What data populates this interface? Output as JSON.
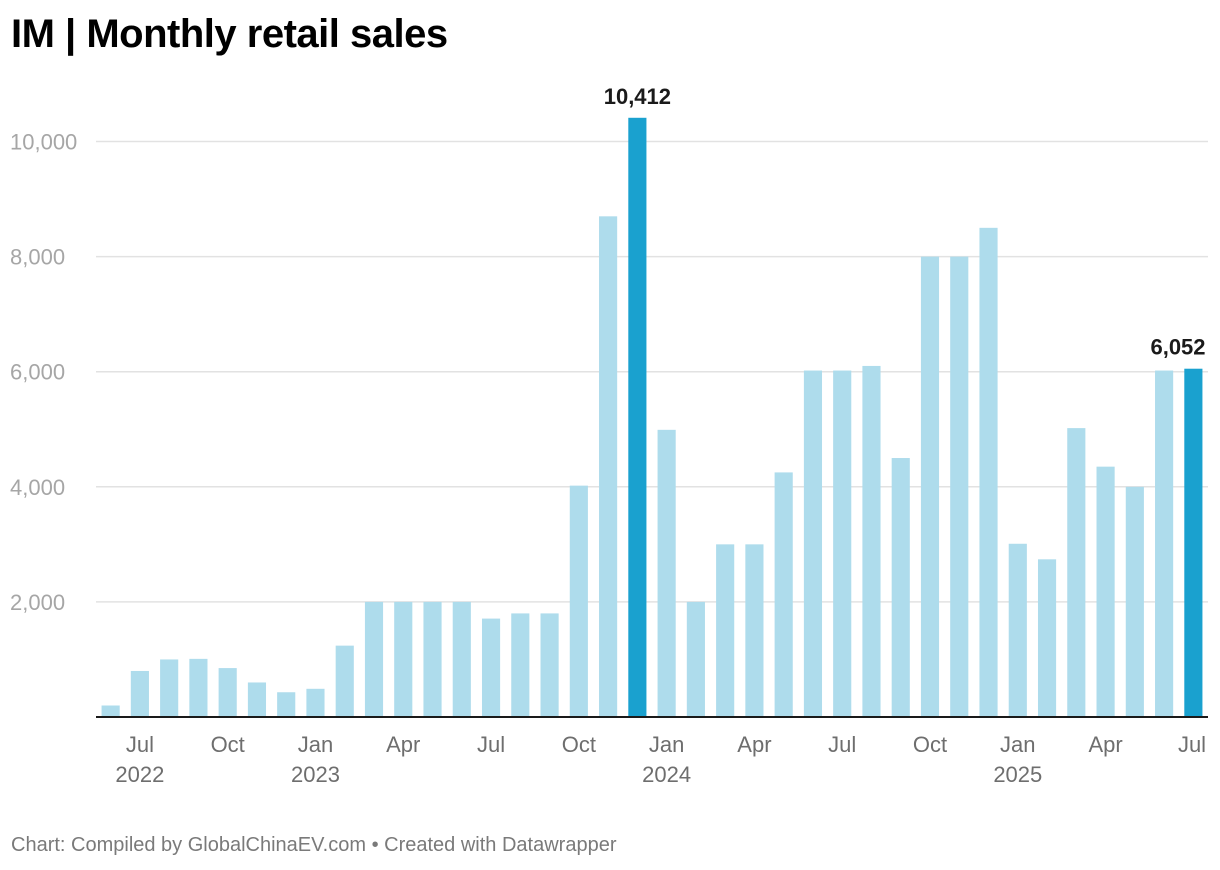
{
  "title": "IM | Monthly retail sales",
  "footer": {
    "source": "Chart: Compiled by GlobalChinaEV.com",
    "separator": "•",
    "credit": "Created with Datawrapper"
  },
  "colors": {
    "bar": "#aedcec",
    "highlight": "#1aa1cf",
    "grid": "#e2e2e2",
    "axis": "#1a1a1a"
  },
  "chart_data": {
    "type": "bar",
    "title": "IM | Monthly retail sales",
    "xlabel": "",
    "ylabel": "",
    "ylim": [
      0,
      10500
    ],
    "yticks": [
      2000,
      4000,
      6000,
      8000,
      10000
    ],
    "ytick_labels": [
      "2,000",
      "4,000",
      "6,000",
      "8,000",
      "10,000"
    ],
    "grid": true,
    "legend": "none",
    "categories": [
      "2022-06",
      "2022-07",
      "2022-08",
      "2022-09",
      "2022-10",
      "2022-11",
      "2022-12",
      "2023-01",
      "2023-02",
      "2023-03",
      "2023-04",
      "2023-05",
      "2023-06",
      "2023-07",
      "2023-08",
      "2023-09",
      "2023-10",
      "2023-11",
      "2023-12",
      "2024-01",
      "2024-02",
      "2024-03",
      "2024-04",
      "2024-05",
      "2024-06",
      "2024-07",
      "2024-08",
      "2024-09",
      "2024-10",
      "2024-11",
      "2024-12",
      "2025-01",
      "2025-02",
      "2025-03",
      "2025-04",
      "2025-05",
      "2025-06",
      "2025-07"
    ],
    "values": [
      200,
      800,
      1000,
      1010,
      850,
      600,
      430,
      490,
      1240,
      2000,
      2000,
      2000,
      2000,
      1710,
      1800,
      1800,
      4020,
      8700,
      10412,
      4990,
      2000,
      3000,
      3000,
      4250,
      6020,
      6020,
      6100,
      4500,
      8000,
      8000,
      8500,
      3010,
      2740,
      5020,
      4350,
      4000,
      6020,
      6052
    ],
    "highlight": [
      18,
      37
    ],
    "data_labels": [
      {
        "index": 18,
        "text": "10,412"
      },
      {
        "index": 37,
        "text": "6,052"
      }
    ],
    "x_tick_labels": [
      {
        "index": 1,
        "month": "Jul",
        "year": "2022"
      },
      {
        "index": 4,
        "month": "Oct",
        "year": ""
      },
      {
        "index": 7,
        "month": "Jan",
        "year": "2023"
      },
      {
        "index": 10,
        "month": "Apr",
        "year": ""
      },
      {
        "index": 13,
        "month": "Jul",
        "year": ""
      },
      {
        "index": 16,
        "month": "Oct",
        "year": ""
      },
      {
        "index": 19,
        "month": "Jan",
        "year": "2024"
      },
      {
        "index": 22,
        "month": "Apr",
        "year": ""
      },
      {
        "index": 25,
        "month": "Jul",
        "year": ""
      },
      {
        "index": 28,
        "month": "Oct",
        "year": ""
      },
      {
        "index": 31,
        "month": "Jan",
        "year": "2025"
      },
      {
        "index": 34,
        "month": "Apr",
        "year": ""
      },
      {
        "index": 37,
        "month": "Jul",
        "year": ""
      }
    ]
  }
}
